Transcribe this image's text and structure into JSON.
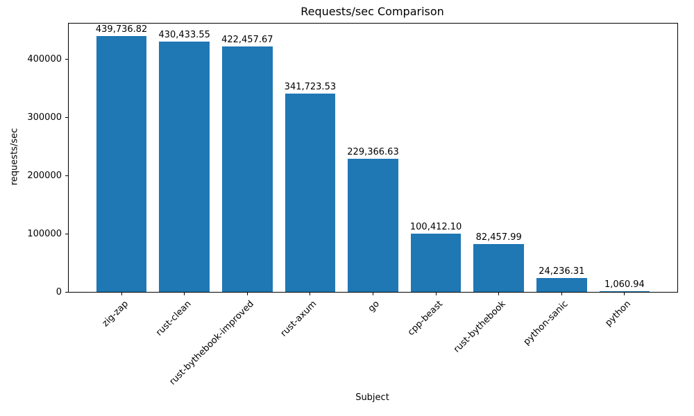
{
  "chart_data": {
    "type": "bar",
    "title": "Requests/sec Comparison",
    "xlabel": "Subject",
    "ylabel": "requests/sec",
    "categories": [
      "zig-zap",
      "rust-clean",
      "rust-bythebook-improved",
      "rust-axum",
      "go",
      "cpp-beast",
      "rust-bythebook",
      "python-sanic",
      "python"
    ],
    "values": [
      439736.82,
      430433.55,
      422457.67,
      341723.53,
      229366.63,
      100412.1,
      82457.99,
      24236.31,
      1060.94
    ],
    "bar_labels": [
      "439,736.82",
      "430,433.55",
      "422,457.67",
      "341,723.53",
      "229,366.63",
      "100,412.10",
      "82,457.99",
      "24,236.31",
      "1,060.94"
    ],
    "ytick_values": [
      0,
      100000,
      200000,
      300000,
      400000
    ],
    "ytick_labels": [
      "0",
      "100000",
      "200000",
      "300000",
      "400000"
    ],
    "ylim": [
      0,
      461723.66
    ],
    "bar_color": "#1f77b4",
    "bar_width_fraction": 0.8,
    "x_margin_fraction": 0.05,
    "grid": false,
    "legend": "none",
    "text_color": "#000000",
    "spine_color": "#000000"
  }
}
